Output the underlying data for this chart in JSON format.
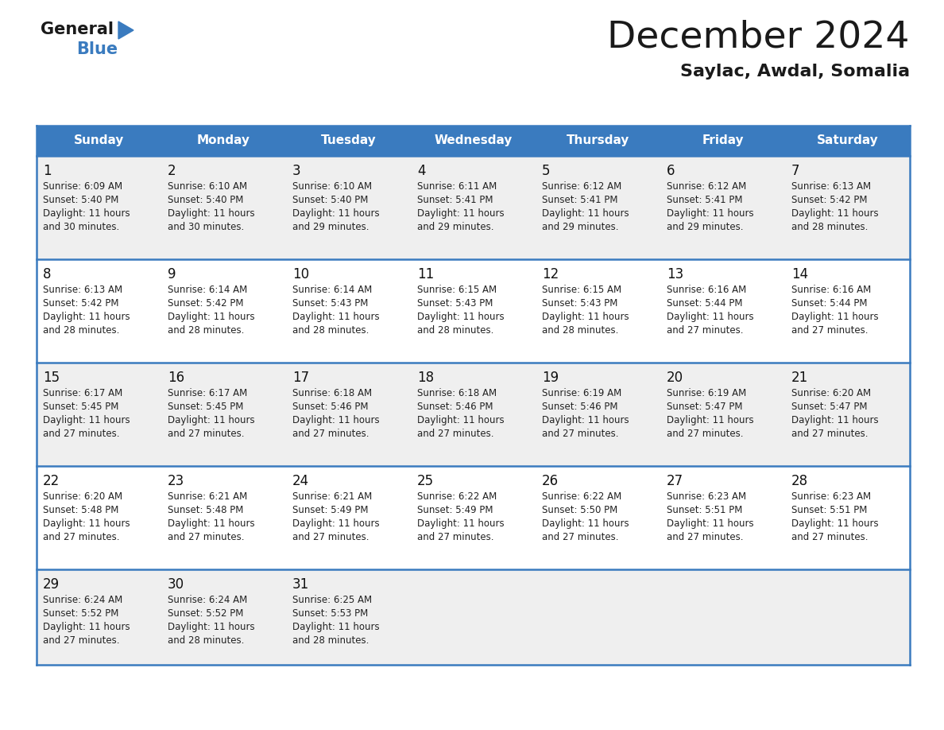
{
  "title": "December 2024",
  "subtitle": "Saylac, Awdal, Somalia",
  "days_of_week": [
    "Sunday",
    "Monday",
    "Tuesday",
    "Wednesday",
    "Thursday",
    "Friday",
    "Saturday"
  ],
  "header_bg": "#3a7bbf",
  "header_text": "#ffffff",
  "row_bg_1": "#efefef",
  "row_bg_2": "#ffffff",
  "border_color": "#3a7bbf",
  "title_color": "#1a1a1a",
  "subtitle_color": "#1a1a1a",
  "logo_black": "#1a1a1a",
  "logo_blue": "#3a7bbf",
  "calendar": [
    [
      {
        "day": 1,
        "sunrise": "6:09 AM",
        "sunset": "5:40 PM",
        "daylight": "11 hours and 30 minutes"
      },
      {
        "day": 2,
        "sunrise": "6:10 AM",
        "sunset": "5:40 PM",
        "daylight": "11 hours and 30 minutes"
      },
      {
        "day": 3,
        "sunrise": "6:10 AM",
        "sunset": "5:40 PM",
        "daylight": "11 hours and 29 minutes"
      },
      {
        "day": 4,
        "sunrise": "6:11 AM",
        "sunset": "5:41 PM",
        "daylight": "11 hours and 29 minutes"
      },
      {
        "day": 5,
        "sunrise": "6:12 AM",
        "sunset": "5:41 PM",
        "daylight": "11 hours and 29 minutes"
      },
      {
        "day": 6,
        "sunrise": "6:12 AM",
        "sunset": "5:41 PM",
        "daylight": "11 hours and 29 minutes"
      },
      {
        "day": 7,
        "sunrise": "6:13 AM",
        "sunset": "5:42 PM",
        "daylight": "11 hours and 28 minutes"
      }
    ],
    [
      {
        "day": 8,
        "sunrise": "6:13 AM",
        "sunset": "5:42 PM",
        "daylight": "11 hours and 28 minutes"
      },
      {
        "day": 9,
        "sunrise": "6:14 AM",
        "sunset": "5:42 PM",
        "daylight": "11 hours and 28 minutes"
      },
      {
        "day": 10,
        "sunrise": "6:14 AM",
        "sunset": "5:43 PM",
        "daylight": "11 hours and 28 minutes"
      },
      {
        "day": 11,
        "sunrise": "6:15 AM",
        "sunset": "5:43 PM",
        "daylight": "11 hours and 28 minutes"
      },
      {
        "day": 12,
        "sunrise": "6:15 AM",
        "sunset": "5:43 PM",
        "daylight": "11 hours and 28 minutes"
      },
      {
        "day": 13,
        "sunrise": "6:16 AM",
        "sunset": "5:44 PM",
        "daylight": "11 hours and 27 minutes"
      },
      {
        "day": 14,
        "sunrise": "6:16 AM",
        "sunset": "5:44 PM",
        "daylight": "11 hours and 27 minutes"
      }
    ],
    [
      {
        "day": 15,
        "sunrise": "6:17 AM",
        "sunset": "5:45 PM",
        "daylight": "11 hours and 27 minutes"
      },
      {
        "day": 16,
        "sunrise": "6:17 AM",
        "sunset": "5:45 PM",
        "daylight": "11 hours and 27 minutes"
      },
      {
        "day": 17,
        "sunrise": "6:18 AM",
        "sunset": "5:46 PM",
        "daylight": "11 hours and 27 minutes"
      },
      {
        "day": 18,
        "sunrise": "6:18 AM",
        "sunset": "5:46 PM",
        "daylight": "11 hours and 27 minutes"
      },
      {
        "day": 19,
        "sunrise": "6:19 AM",
        "sunset": "5:46 PM",
        "daylight": "11 hours and 27 minutes"
      },
      {
        "day": 20,
        "sunrise": "6:19 AM",
        "sunset": "5:47 PM",
        "daylight": "11 hours and 27 minutes"
      },
      {
        "day": 21,
        "sunrise": "6:20 AM",
        "sunset": "5:47 PM",
        "daylight": "11 hours and 27 minutes"
      }
    ],
    [
      {
        "day": 22,
        "sunrise": "6:20 AM",
        "sunset": "5:48 PM",
        "daylight": "11 hours and 27 minutes"
      },
      {
        "day": 23,
        "sunrise": "6:21 AM",
        "sunset": "5:48 PM",
        "daylight": "11 hours and 27 minutes"
      },
      {
        "day": 24,
        "sunrise": "6:21 AM",
        "sunset": "5:49 PM",
        "daylight": "11 hours and 27 minutes"
      },
      {
        "day": 25,
        "sunrise": "6:22 AM",
        "sunset": "5:49 PM",
        "daylight": "11 hours and 27 minutes"
      },
      {
        "day": 26,
        "sunrise": "6:22 AM",
        "sunset": "5:50 PM",
        "daylight": "11 hours and 27 minutes"
      },
      {
        "day": 27,
        "sunrise": "6:23 AM",
        "sunset": "5:51 PM",
        "daylight": "11 hours and 27 minutes"
      },
      {
        "day": 28,
        "sunrise": "6:23 AM",
        "sunset": "5:51 PM",
        "daylight": "11 hours and 27 minutes"
      }
    ],
    [
      {
        "day": 29,
        "sunrise": "6:24 AM",
        "sunset": "5:52 PM",
        "daylight": "11 hours and 27 minutes"
      },
      {
        "day": 30,
        "sunrise": "6:24 AM",
        "sunset": "5:52 PM",
        "daylight": "11 hours and 28 minutes"
      },
      {
        "day": 31,
        "sunrise": "6:25 AM",
        "sunset": "5:53 PM",
        "daylight": "11 hours and 28 minutes"
      },
      null,
      null,
      null,
      null
    ]
  ]
}
